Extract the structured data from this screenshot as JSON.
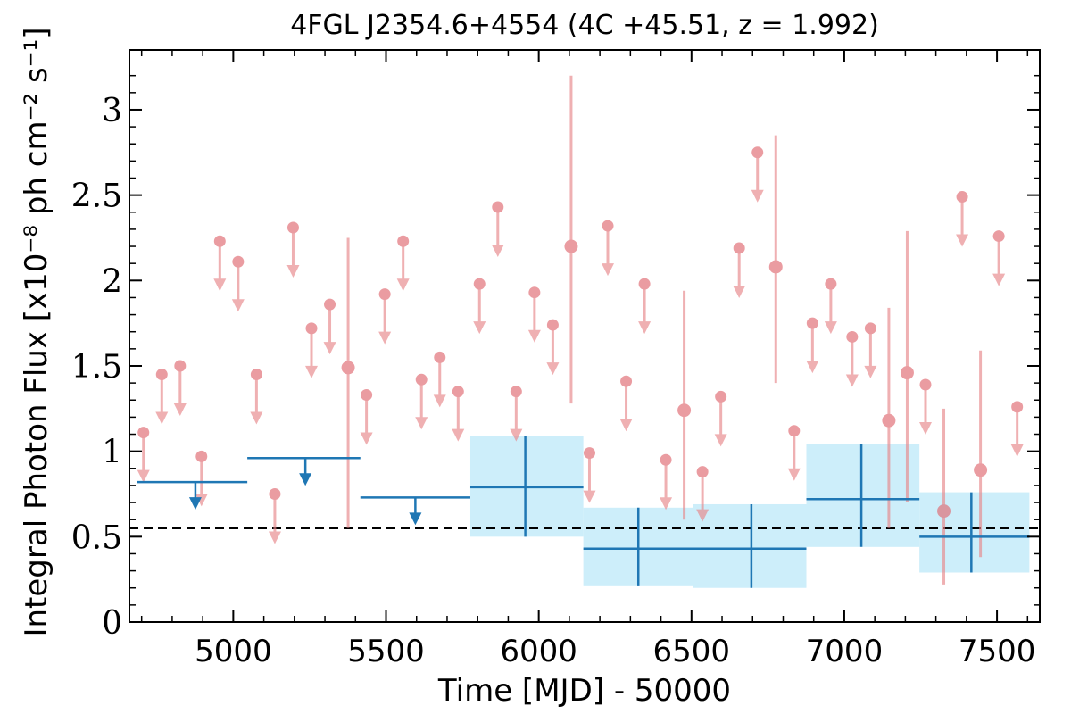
{
  "chart_data": {
    "type": "scatter",
    "title": "4FGL J2354.6+4554 (4C +45.51, z = 1.992)",
    "xlabel": "Time [MJD] - 50000",
    "ylabel": "Integral Photon Flux [x10⁻⁸ ph cm⁻² s⁻¹]",
    "xlim": [
      4660,
      7640
    ],
    "ylim": [
      0,
      3.35
    ],
    "x_ticks": [
      "5000",
      "5500",
      "6000",
      "6500",
      "7000",
      "7500"
    ],
    "y_ticks": [
      "0",
      "0.5",
      "1",
      "1.5",
      "2",
      "2.5",
      "3"
    ],
    "mean_flux": 0.55,
    "colors": {
      "monthly": "#e8868a",
      "monthly_point": "#e06870",
      "binned": "#1f77b4",
      "binned_band": "#cdeefa",
      "mean_line": "#000000"
    },
    "series": [
      {
        "role": "monthly_upper_limits",
        "points": [
          {
            "x": 4706,
            "y": 1.11
          },
          {
            "x": 4766,
            "y": 1.45
          },
          {
            "x": 4826,
            "y": 1.5
          },
          {
            "x": 4896,
            "y": 0.97
          },
          {
            "x": 4956,
            "y": 2.23
          },
          {
            "x": 5016,
            "y": 2.11
          },
          {
            "x": 5076,
            "y": 1.45
          },
          {
            "x": 5136,
            "y": 0.75
          },
          {
            "x": 5196,
            "y": 2.31
          },
          {
            "x": 5256,
            "y": 1.72
          },
          {
            "x": 5316,
            "y": 1.86
          },
          {
            "x": 5436,
            "y": 1.33
          },
          {
            "x": 5496,
            "y": 1.92
          },
          {
            "x": 5556,
            "y": 2.23
          },
          {
            "x": 5616,
            "y": 1.42
          },
          {
            "x": 5676,
            "y": 1.55
          },
          {
            "x": 5736,
            "y": 1.35
          },
          {
            "x": 5806,
            "y": 1.98
          },
          {
            "x": 5866,
            "y": 2.43
          },
          {
            "x": 5926,
            "y": 1.35
          },
          {
            "x": 5986,
            "y": 1.93
          },
          {
            "x": 6046,
            "y": 1.74
          },
          {
            "x": 6166,
            "y": 0.99
          },
          {
            "x": 6226,
            "y": 2.32
          },
          {
            "x": 6286,
            "y": 1.41
          },
          {
            "x": 6346,
            "y": 1.98
          },
          {
            "x": 6416,
            "y": 0.95
          },
          {
            "x": 6536,
            "y": 0.88
          },
          {
            "x": 6596,
            "y": 1.32
          },
          {
            "x": 6656,
            "y": 2.19
          },
          {
            "x": 6716,
            "y": 2.75
          },
          {
            "x": 6836,
            "y": 1.12
          },
          {
            "x": 6896,
            "y": 1.75
          },
          {
            "x": 6956,
            "y": 1.98
          },
          {
            "x": 7026,
            "y": 1.67
          },
          {
            "x": 7086,
            "y": 1.72
          },
          {
            "x": 7266,
            "y": 1.39
          },
          {
            "x": 7386,
            "y": 2.49
          },
          {
            "x": 7506,
            "y": 2.26
          },
          {
            "x": 7566,
            "y": 1.26
          }
        ]
      },
      {
        "role": "monthly_detections",
        "points": [
          {
            "x": 5376,
            "y": 1.49,
            "ylo": 0.55,
            "yhi": 2.25
          },
          {
            "x": 6106,
            "y": 2.2,
            "ylo": 1.28,
            "yhi": 3.2
          },
          {
            "x": 6476,
            "y": 1.24,
            "ylo": 0.6,
            "yhi": 1.94
          },
          {
            "x": 6776,
            "y": 2.08,
            "ylo": 1.4,
            "yhi": 2.85
          },
          {
            "x": 7146,
            "y": 1.18,
            "ylo": 0.55,
            "yhi": 1.84
          },
          {
            "x": 7206,
            "y": 1.46,
            "ylo": 0.7,
            "yhi": 2.29
          },
          {
            "x": 7326,
            "y": 0.65,
            "ylo": 0.22,
            "yhi": 1.25
          },
          {
            "x": 7446,
            "y": 0.89,
            "ylo": 0.38,
            "yhi": 1.59
          }
        ]
      },
      {
        "role": "binned_upper_limits",
        "points": [
          {
            "x": 4876,
            "xlo": 4686,
            "xhi": 5046,
            "y": 0.82
          },
          {
            "x": 5236,
            "xlo": 5046,
            "xhi": 5416,
            "y": 0.96
          },
          {
            "x": 5596,
            "xlo": 5416,
            "xhi": 5776,
            "y": 0.73
          }
        ]
      },
      {
        "role": "binned_detections",
        "points": [
          {
            "x": 5956,
            "xlo": 5776,
            "xhi": 6146,
            "y": 0.79,
            "ylo": 0.5,
            "yhi": 1.09
          },
          {
            "x": 6326,
            "xlo": 6146,
            "xhi": 6506,
            "y": 0.43,
            "ylo": 0.21,
            "yhi": 0.67
          },
          {
            "x": 6696,
            "xlo": 6506,
            "xhi": 6876,
            "y": 0.43,
            "ylo": 0.2,
            "yhi": 0.69
          },
          {
            "x": 7056,
            "xlo": 6876,
            "xhi": 7246,
            "y": 0.72,
            "ylo": 0.44,
            "yhi": 1.04
          },
          {
            "x": 7416,
            "xlo": 7246,
            "xhi": 7606,
            "y": 0.5,
            "ylo": 0.29,
            "yhi": 0.76
          }
        ]
      }
    ]
  }
}
